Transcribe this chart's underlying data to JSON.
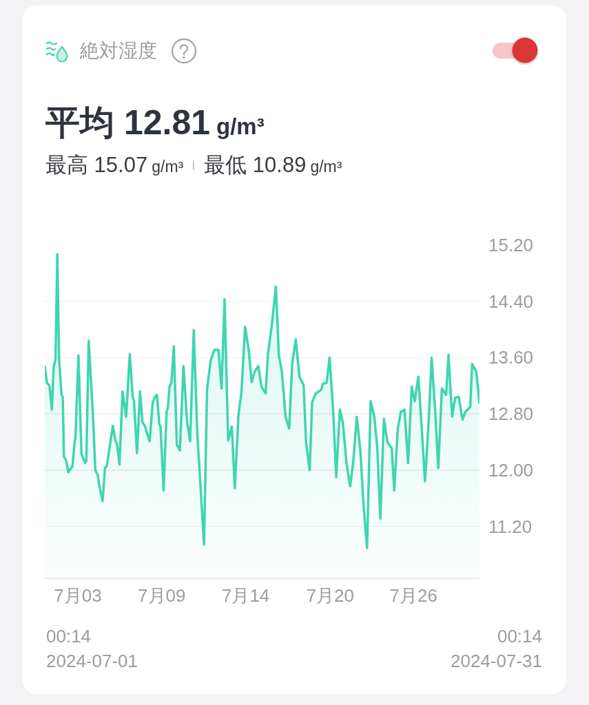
{
  "chart_data": {
    "type": "area",
    "title": "絶対湿度",
    "subtitle": "平均 12.81 g/m³",
    "annotations": [
      "最高 15.07 g/m³",
      "最低 10.89 g/m³",
      "00:14\n2024-07-01",
      "00:14\n2024-07-31"
    ],
    "x": [
      "2024-07-01T00:14",
      "2024-07-01T04:00",
      "2024-07-01T08:00",
      "2024-07-01T12:00",
      "2024-07-01T15:00",
      "2024-07-01T18:00",
      "2024-07-01T21:00",
      "2024-07-02T00:00",
      "2024-07-02T04:00",
      "2024-07-02T06:00",
      "2024-07-02T08:00",
      "2024-07-02T12:00",
      "2024-07-02T15:00",
      "2024-07-02T22:00",
      "2024-07-03T02:00",
      "2024-07-03T03:00",
      "2024-07-03T08:00",
      "2024-07-03T13:00",
      "2024-07-03T19:00",
      "2024-07-03T21:00",
      "2024-07-04T01:00",
      "2024-07-04T08:00",
      "2024-07-04T12:00",
      "2024-07-04T16:00",
      "2024-07-04T18:00",
      "2024-07-05T00:00",
      "2024-07-05T04:00",
      "2024-07-05T07:00",
      "2024-07-05T11:00",
      "2024-07-05T17:00",
      "2024-07-05T21:00",
      "2024-07-06T00:00",
      "2024-07-06T04:00",
      "2024-07-06T09:00",
      "2024-07-06T15:00",
      "2024-07-06T21:00",
      "2024-07-07T02:00",
      "2024-07-07T04:00",
      "2024-07-07T09:00",
      "2024-07-07T14:00",
      "2024-07-07T18:00",
      "2024-07-07T22:00",
      "2024-07-08T01:00",
      "2024-07-08T06:00",
      "2024-07-08T11:00",
      "2024-07-08T14:00",
      "2024-07-08T18:00",
      "2024-07-08T22:00",
      "2024-07-09T00:00",
      "2024-07-09T05:00",
      "2024-07-09T10:00",
      "2024-07-09T12:00",
      "2024-07-09T15:00",
      "2024-07-09T18:00",
      "2024-07-09T22:00",
      "2024-07-10T03:00",
      "2024-07-10T08:00",
      "2024-07-10T14:00",
      "2024-07-10T20:00",
      "2024-07-11T01:00",
      "2024-07-11T07:00",
      "2024-07-11T13:00",
      "2024-07-11T18:00",
      "2024-07-12T00:00",
      "2024-07-12T05:00",
      "2024-07-12T11:00",
      "2024-07-12T17:00",
      "2024-07-13T00:00",
      "2024-07-13T05:00",
      "2024-07-13T10:00",
      "2024-07-13T16:00",
      "2024-07-13T22:00",
      "2024-07-14T03:00",
      "2024-07-14T09:00",
      "2024-07-14T14:00",
      "2024-07-14T20:00",
      "2024-07-15T02:00",
      "2024-07-15T07:00",
      "2024-07-15T12:00",
      "2024-07-15T18:00",
      "2024-07-15T23:00",
      "2024-07-16T06:00",
      "2024-07-16T10:00",
      "2024-07-16T16:00",
      "2024-07-16T23:00",
      "2024-07-17T04:00",
      "2024-07-17T09:00",
      "2024-07-17T15:00",
      "2024-07-17T21:00",
      "2024-07-18T02:00",
      "2024-07-18T08:00",
      "2024-07-18T14:00",
      "2024-07-18T21:00",
      "2024-07-19T01:00",
      "2024-07-19T07:00",
      "2024-07-19T11:00",
      "2024-07-19T17:00",
      "2024-07-20T02:00",
      "2024-07-20T05:00",
      "2024-07-20T11:00",
      "2024-07-20T16:00",
      "2024-07-20T22:00",
      "2024-07-21T03:00",
      "2024-07-21T09:00",
      "2024-07-21T14:00",
      "2024-07-21T20:00",
      "2024-07-22T02:00",
      "2024-07-22T07:00",
      "2024-07-22T13:00",
      "2024-07-22T19:00",
      "2024-07-23T00:00",
      "2024-07-23T06:00",
      "2024-07-23T12:00",
      "2024-07-23T18:00",
      "2024-07-23T23:00",
      "2024-07-24T04:00",
      "2024-07-24T10:00",
      "2024-07-24T16:00",
      "2024-07-24T23:00",
      "2024-07-25T03:00",
      "2024-07-25T09:00",
      "2024-07-25T14:00",
      "2024-07-25T20:00",
      "2024-07-26T02:00",
      "2024-07-26T08:00",
      "2024-07-26T13:00",
      "2024-07-26T19:00",
      "2024-07-27T00:00",
      "2024-07-27T06:00",
      "2024-07-27T12:00",
      "2024-07-27T17:00",
      "2024-07-27T23:00",
      "2024-07-28T04:00",
      "2024-07-28T10:00",
      "2024-07-28T17:00",
      "2024-07-28T21:00",
      "2024-07-29T03:00",
      "2024-07-29T08:00",
      "2024-07-29T14:00",
      "2024-07-29T20:00",
      "2024-07-30T01:00",
      "2024-07-30T09:00",
      "2024-07-30T12:00",
      "2024-07-30T19:00",
      "2024-07-31T00:14"
    ],
    "values": [
      13.47,
      13.24,
      13.2,
      12.86,
      13.47,
      13.57,
      15.07,
      13.56,
      13.07,
      13.04,
      12.19,
      12.13,
      11.97,
      12.05,
      12.42,
      12.45,
      13.63,
      12.23,
      12.1,
      12.13,
      13.84,
      12.78,
      12.0,
      11.93,
      11.8,
      11.56,
      12.03,
      12.06,
      12.29,
      12.63,
      12.42,
      12.37,
      12.08,
      13.12,
      12.76,
      13.65,
      13.04,
      12.98,
      12.24,
      13.12,
      12.68,
      12.63,
      12.54,
      12.41,
      12.96,
      13.03,
      13.07,
      12.65,
      12.62,
      11.71,
      12.83,
      12.88,
      13.19,
      13.24,
      13.76,
      12.36,
      12.28,
      13.48,
      12.68,
      12.41,
      13.99,
      12.49,
      11.8,
      10.94,
      13.14,
      13.56,
      13.71,
      13.71,
      13.16,
      14.43,
      12.42,
      12.62,
      11.74,
      12.78,
      13.11,
      14.04,
      13.71,
      13.25,
      13.4,
      13.48,
      13.19,
      13.09,
      13.66,
      14.04,
      14.61,
      13.63,
      13.4,
      12.76,
      12.59,
      13.51,
      13.86,
      13.33,
      13.21,
      12.4,
      12.0,
      12.96,
      13.09,
      13.14,
      13.23,
      13.24,
      13.6,
      12.83,
      11.9,
      12.86,
      12.67,
      12.1,
      11.77,
      12.1,
      12.76,
      12.28,
      11.53,
      10.89,
      12.98,
      12.76,
      12.32,
      11.31,
      12.73,
      12.39,
      12.31,
      11.71,
      12.59,
      12.83,
      12.86,
      12.1,
      13.19,
      12.98,
      13.33,
      12.68,
      11.84,
      12.68,
      13.6,
      12.83,
      12.03,
      13.16,
      13.07,
      13.64,
      12.76,
      13.03,
      13.04,
      12.72,
      12.83,
      12.9,
      13.51,
      13.4,
      12.96
    ],
    "color": "#3fd5b0",
    "xlim": [
      "2024-07-01T00:14",
      "2024-07-31T00:14"
    ],
    "xticks": [
      {
        "value": "2024-07-03T07:00",
        "label": "7月03"
      },
      {
        "value": "2024-07-09T02:00",
        "label": "7月09"
      },
      {
        "value": "2024-07-14T21:00",
        "label": "7月14"
      },
      {
        "value": "2024-07-20T17:00",
        "label": "7月20"
      },
      {
        "value": "2024-07-26T11:00",
        "label": "7月26"
      }
    ],
    "ylim": [
      10.47,
      15.2
    ],
    "yticks": [
      {
        "value": 11.2,
        "label": "11.20"
      },
      {
        "value": 12.0,
        "label": "12.00"
      },
      {
        "value": 12.8,
        "label": "12.80"
      },
      {
        "value": 13.6,
        "label": "13.60"
      },
      {
        "value": 14.4,
        "label": "14.40"
      },
      {
        "value": 15.2,
        "label": "15.20"
      }
    ],
    "grid": "y"
  }
}
